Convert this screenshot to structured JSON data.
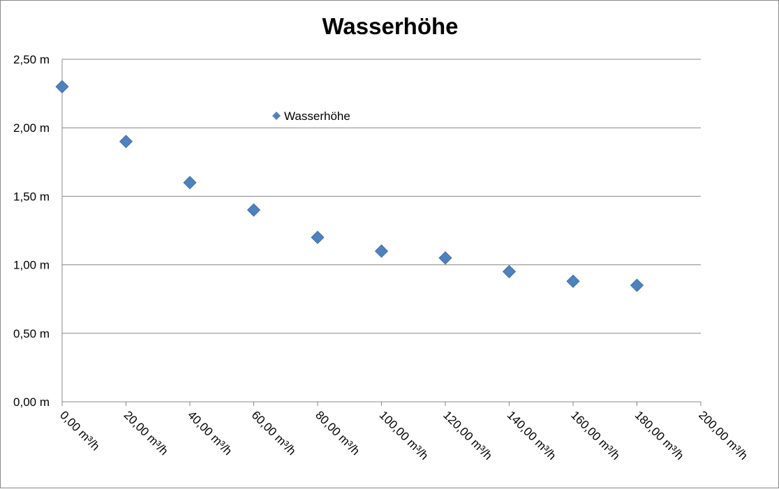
{
  "chart_data": {
    "type": "scatter",
    "title": "Wasserhöhe",
    "xlabel": "",
    "ylabel": "",
    "xlim": [
      0,
      200
    ],
    "ylim": [
      0,
      2.5
    ],
    "x_ticks": [
      0,
      20,
      40,
      60,
      80,
      100,
      120,
      140,
      160,
      180,
      200
    ],
    "x_tick_labels": [
      "0,00 m³/h",
      "20,00 m³/h",
      "40,00 m³/h",
      "60,00 m³/h",
      "80,00 m³/h",
      "100,00 m³/h",
      "120,00 m³/h",
      "140,00 m³/h",
      "160,00 m³/h",
      "180,00 m³/h",
      "200,00 m³/h"
    ],
    "y_ticks": [
      0,
      0.5,
      1.0,
      1.5,
      2.0,
      2.5
    ],
    "y_tick_labels": [
      "0,00 m",
      "0,50 m",
      "1,00 m",
      "1,50 m",
      "2,00 m",
      "2,50 m"
    ],
    "grid": "horizontal",
    "legend_position": "inside-top",
    "series": [
      {
        "name": "Wasserhöhe",
        "color": "#4F81BD",
        "marker": "diamond",
        "points": [
          {
            "x": 0,
            "y": 2.3
          },
          {
            "x": 20,
            "y": 1.9
          },
          {
            "x": 40,
            "y": 1.6
          },
          {
            "x": 60,
            "y": 1.4
          },
          {
            "x": 80,
            "y": 1.2
          },
          {
            "x": 100,
            "y": 1.1
          },
          {
            "x": 120,
            "y": 1.05
          },
          {
            "x": 140,
            "y": 0.95
          },
          {
            "x": 160,
            "y": 0.88
          },
          {
            "x": 180,
            "y": 0.85
          }
        ]
      }
    ]
  }
}
